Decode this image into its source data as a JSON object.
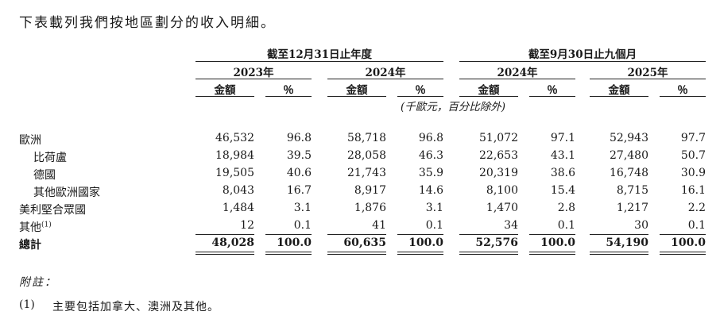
{
  "intro_text": "下表載列我們按地區劃分的收入明細。",
  "header": {
    "group_year": "截至12月31日止年度",
    "group_nine_months": "截至9月30日止九個月",
    "years": [
      "2023年",
      "2024年",
      "2024年",
      "2025年"
    ],
    "amount_label": "金額",
    "percent_label": "％",
    "unit_note": "(千歐元，百分比除外)"
  },
  "rows": [
    {
      "label": "歐洲",
      "values": [
        "46,532",
        "96.8",
        "58,718",
        "96.8",
        "51,072",
        "97.1",
        "52,943",
        "97.7"
      ]
    },
    {
      "label": "比荷盧",
      "values": [
        "18,984",
        "39.5",
        "28,058",
        "46.3",
        "22,653",
        "43.1",
        "27,480",
        "50.7"
      ]
    },
    {
      "label": "德國",
      "values": [
        "19,505",
        "40.6",
        "21,743",
        "35.9",
        "20,319",
        "38.6",
        "16,748",
        "30.9"
      ]
    },
    {
      "label": "其他歐洲國家",
      "values": [
        "8,043",
        "16.7",
        "8,917",
        "14.6",
        "8,100",
        "15.4",
        "8,715",
        "16.1"
      ]
    },
    {
      "label": "美利堅合眾國",
      "values": [
        "1,484",
        "3.1",
        "1,876",
        "3.1",
        "1,470",
        "2.8",
        "1,217",
        "2.2"
      ]
    },
    {
      "label": "其他",
      "footnote_marker": "(1)",
      "values": [
        "12",
        "0.1",
        "41",
        "0.1",
        "34",
        "0.1",
        "30",
        "0.1"
      ]
    },
    {
      "label": "總計",
      "values": [
        "48,028",
        "100.0",
        "60,635",
        "100.0",
        "52,576",
        "100.0",
        "54,190",
        "100.0"
      ]
    }
  ],
  "notes_title": "附註：",
  "footnote": {
    "marker": "(1)",
    "text": "主要包括加拿大、澳洲及其他。"
  }
}
